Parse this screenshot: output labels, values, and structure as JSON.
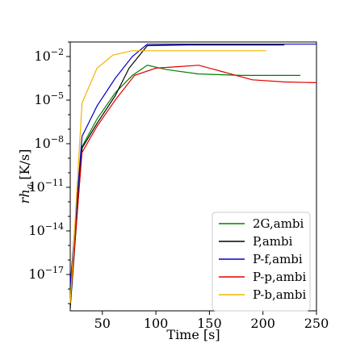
{
  "chart_data": {
    "type": "line",
    "title": "",
    "xlabel": "Time [s]",
    "ylabel": "rh_a [K/s]",
    "xlim": [
      20,
      250
    ],
    "ylim_log10": [
      -19.5,
      -1
    ],
    "yscale": "log",
    "grid": false,
    "legend_position": "bottom-right",
    "x_ticks": [
      {
        "value": 50,
        "label": "50"
      },
      {
        "value": 100,
        "label": "100"
      },
      {
        "value": 150,
        "label": "150"
      },
      {
        "value": 200,
        "label": "200"
      },
      {
        "value": 250,
        "label": "250"
      }
    ],
    "y_ticks": [
      {
        "exp": -2,
        "base": "10",
        "sup": "−2"
      },
      {
        "exp": -5,
        "base": "10",
        "sup": "−5"
      },
      {
        "exp": -8,
        "base": "10",
        "sup": "−8"
      },
      {
        "exp": -11,
        "base": "10",
        "sup": "−11"
      },
      {
        "exp": -14,
        "base": "10",
        "sup": "−14"
      },
      {
        "exp": -17,
        "base": "10",
        "sup": "−17"
      }
    ],
    "series": [
      {
        "name": "2G,ambi",
        "color": "#008000",
        "points": [
          [
            20,
            -18.5
          ],
          [
            31,
            -8.2
          ],
          [
            45,
            -6.3
          ],
          [
            62,
            -4.5
          ],
          [
            78,
            -3.3
          ],
          [
            92,
            -2.6
          ],
          [
            110,
            -2.9
          ],
          [
            140,
            -3.2
          ],
          [
            180,
            -3.3
          ],
          [
            235,
            -3.3
          ]
        ]
      },
      {
        "name": "P,ambi",
        "color": "#000000",
        "points": [
          [
            20,
            -19.3
          ],
          [
            31,
            -8.3
          ],
          [
            45,
            -6.6
          ],
          [
            62,
            -4.7
          ],
          [
            75,
            -2.8
          ],
          [
            92,
            -1.25
          ],
          [
            130,
            -1.2
          ],
          [
            180,
            -1.2
          ],
          [
            220,
            -1.2
          ]
        ]
      },
      {
        "name": "P-f,ambi",
        "color": "#0000cc",
        "points": [
          [
            20,
            -17.8
          ],
          [
            31,
            -7.5
          ],
          [
            45,
            -5.4
          ],
          [
            62,
            -3.5
          ],
          [
            78,
            -2.0
          ],
          [
            92,
            -1.15
          ],
          [
            150,
            -1.15
          ],
          [
            200,
            -1.15
          ],
          [
            250,
            -1.15
          ]
        ]
      },
      {
        "name": "P-p,ambi",
        "color": "#e00000",
        "points": [
          [
            20,
            -18.8
          ],
          [
            31,
            -8.6
          ],
          [
            45,
            -6.8
          ],
          [
            62,
            -5.0
          ],
          [
            80,
            -3.3
          ],
          [
            100,
            -2.8
          ],
          [
            120,
            -2.7
          ],
          [
            140,
            -2.6
          ],
          [
            160,
            -3.0
          ],
          [
            190,
            -3.6
          ],
          [
            220,
            -3.75
          ],
          [
            250,
            -3.8
          ]
        ]
      },
      {
        "name": "P-b,ambi",
        "color": "#f5b400",
        "points": [
          [
            20,
            -19.0
          ],
          [
            31,
            -5.2
          ],
          [
            45,
            -2.8
          ],
          [
            60,
            -1.9
          ],
          [
            78,
            -1.6
          ],
          [
            95,
            -1.6
          ],
          [
            150,
            -1.6
          ],
          [
            203,
            -1.6
          ]
        ]
      }
    ]
  }
}
